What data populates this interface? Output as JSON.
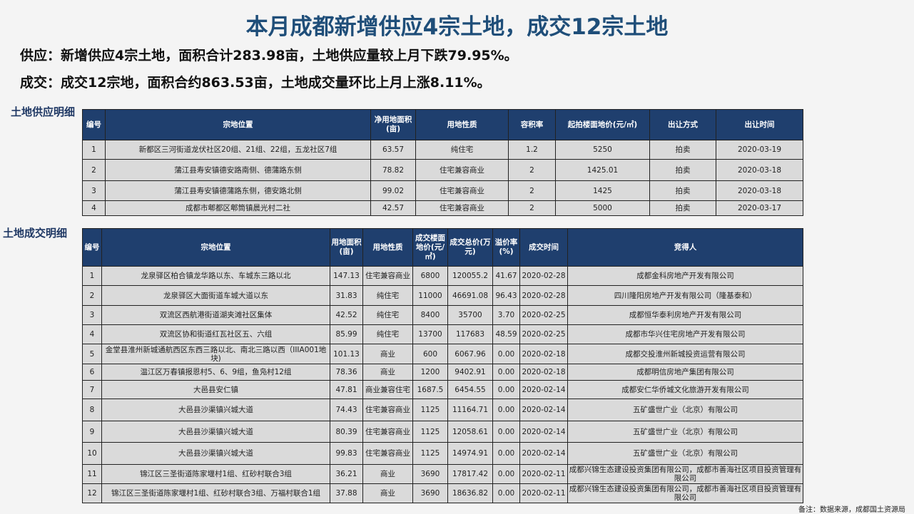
{
  "title": "本月成都新增供应4宗土地，成交12宗土地",
  "summary": {
    "supply": "供应：新增供应4宗土地，面积合计283.98亩，土地供应量较上月下跌79.95%。",
    "deal": "成交：成交12宗地，面积合约863.53亩，土地成交量环比上月上涨8.11%。"
  },
  "supply_section": {
    "label": "土地供应明细",
    "headers": [
      "编号",
      "宗地位置",
      "净用地面积(亩)",
      "用地性质",
      "容积率",
      "起拍楼面地价(元/㎡)",
      "出让方式",
      "出让时间"
    ],
    "rows": [
      [
        "1",
        "新都区三河街道龙伏社区20组、21组、22组，五龙社区7组",
        "63.57",
        "纯住宅",
        "1.2",
        "5250",
        "拍卖",
        "2020-03-19"
      ],
      [
        "2",
        "蒲江县寿安镇德安路南侧、德蒲路东侧",
        "78.82",
        "住宅兼容商业",
        "2",
        "1425.01",
        "拍卖",
        "2020-03-18"
      ],
      [
        "3",
        "蒲江县寿安镇德蒲路东侧，德安路北侧",
        "99.02",
        "住宅兼容商业",
        "2",
        "1425",
        "拍卖",
        "2020-03-18"
      ],
      [
        "4",
        "成都市郫都区郫筒镇晨光村二社",
        "42.57",
        "住宅兼容商业",
        "2",
        "5000",
        "拍卖",
        "2020-03-17"
      ]
    ]
  },
  "deal_section": {
    "label": "土地成交明细",
    "headers": [
      "编号",
      "宗地位置",
      "用地面积(亩)",
      "用地性质",
      "成交楼面地价(元/㎡)",
      "成交总价(万元)",
      "溢价率(%)",
      "成交时间",
      "竞得人"
    ],
    "rows": [
      [
        "1",
        "龙泉驿区柏合镇龙华路以东、车城东三路以北",
        "147.13",
        "住宅兼容商业",
        "6800",
        "120055.2",
        "41.67",
        "2020-02-28",
        "成都金科房地产开发有限公司"
      ],
      [
        "2",
        "龙泉驿区大面街道车城大道以东",
        "31.83",
        "纯住宅",
        "11000",
        "46691.08",
        "96.43",
        "2020-02-28",
        "四川隆阳房地产开发有限公司（隆基泰和）"
      ],
      [
        "3",
        "双流区西航港街道湖夹滩社区集体",
        "42.52",
        "纯住宅",
        "8400",
        "35700",
        "3.70",
        "2020-02-25",
        "成都恒华泰利房地产开发有限公司"
      ],
      [
        "4",
        "双流区协和街道红瓦社区五、六组",
        "85.99",
        "纯住宅",
        "13700",
        "117683",
        "48.59",
        "2020-02-25",
        "成都市华兴住宅房地产开发有限公司"
      ],
      [
        "5",
        "金堂县淮州新城通航西区东西三路以北、南北三路以西（IIIA001地块)",
        "101.13",
        "商业",
        "600",
        "6067.96",
        "0.00",
        "2020-02-18",
        "成都交投淮州新城投资运营有限公司"
      ],
      [
        "6",
        "温江区万春镇报恩村5、6、9组，鱼凫村12组",
        "78.36",
        "商业",
        "1200",
        "9402.91",
        "0.00",
        "2020-02-18",
        "成都明信房地产集团有限公司"
      ],
      [
        "7",
        "大邑县安仁镇",
        "47.81",
        "商业兼容住宅",
        "1687.5",
        "6454.55",
        "0.00",
        "2020-02-14",
        "成都安仁华侨城文化旅游开发有限公司"
      ],
      [
        "8",
        "大邑县沙渠镇兴城大道",
        "74.43",
        "住宅兼容商业",
        "1125",
        "11164.71",
        "0.00",
        "2020-02-14",
        "五矿盛世广业（北京）有限公司"
      ],
      [
        "9",
        "大邑县沙渠镇兴城大道",
        "80.39",
        "住宅兼容商业",
        "1125",
        "12058.61",
        "0.00",
        "2020-02-14",
        "五矿盛世广业（北京）有限公司"
      ],
      [
        "10",
        "大邑县沙渠镇兴城大道",
        "99.83",
        "住宅兼容商业",
        "1125",
        "14974.91",
        "0.00",
        "2020-02-14",
        "五矿盛世广业（北京）有限公司"
      ],
      [
        "11",
        "锦江区三圣街道陈家堰村1组、红砂村联合3组",
        "36.21",
        "商业",
        "3690",
        "17817.42",
        "0.00",
        "2020-02-11",
        "成都兴锦生态建设投资集团有限公司，成都市善海社区项目投资管理有限公司"
      ],
      [
        "12",
        "锦江区三圣街道陈家堰村1组、红砂村联合3组、万福村联合1组",
        "37.88",
        "商业",
        "3690",
        "18636.82",
        "0.00",
        "2020-02-11",
        "成都兴锦生态建设投资集团有限公司，成都市善海社区项目投资管理有限公司"
      ]
    ]
  },
  "footnote": "备注：数据来源，成都国土资源局"
}
